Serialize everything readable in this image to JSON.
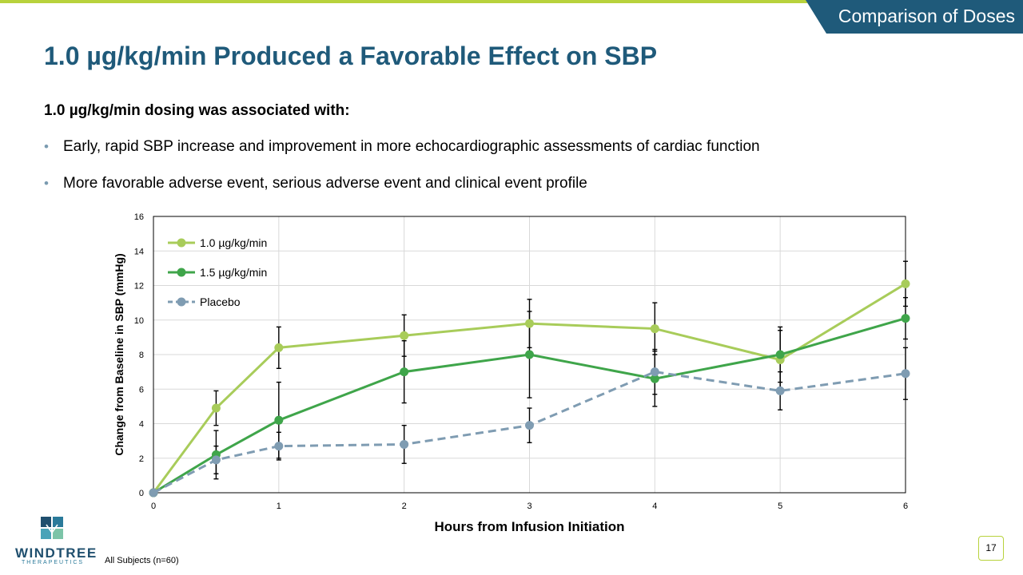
{
  "header": {
    "section_label": "Comparison of Doses"
  },
  "slide": {
    "title": "1.0 µg/kg/min Produced a Favorable Effect on SBP",
    "intro": "1.0 µg/kg/min dosing was associated with:",
    "bullets": [
      "Early, rapid SBP increase and improvement  in more echocardiographic assessments of cardiac function",
      "More favorable adverse event, serious adverse event and clinical event profile"
    ],
    "footnote": "All Subjects (n=60)",
    "page_number": "17"
  },
  "logo": {
    "word": "WINDTREE",
    "sub": "THERAPEUTICS"
  },
  "colors": {
    "title": "#1f5a7a",
    "accent_bar": "#b8d23c",
    "tab": "#1f5a7a"
  },
  "chart_data": {
    "type": "line",
    "xlabel": "Hours from Infusion Initiation",
    "ylabel": "Change from Baseline in SBP (mmHg)",
    "xlim": [
      0,
      6
    ],
    "ylim": [
      0,
      16
    ],
    "xticks": [
      0,
      1,
      2,
      3,
      4,
      5,
      6
    ],
    "yticks": [
      0,
      2,
      4,
      6,
      8,
      10,
      12,
      14,
      16
    ],
    "grid": true,
    "legend": "top-left",
    "x": [
      0,
      0.5,
      1,
      2,
      3,
      4,
      5,
      6
    ],
    "series": [
      {
        "name": "1.0 µg/kg/min",
        "color": "#a8cc5a",
        "dash": false,
        "values": [
          0,
          4.9,
          8.4,
          9.1,
          9.8,
          9.5,
          7.7,
          12.1
        ],
        "errors": [
          0,
          1.0,
          1.2,
          1.2,
          1.4,
          1.5,
          1.7,
          1.3
        ]
      },
      {
        "name": "1.5 µg/kg/min",
        "color": "#3fa54a",
        "dash": false,
        "values": [
          0,
          2.2,
          4.2,
          7.0,
          8.0,
          6.6,
          8.0,
          10.1
        ],
        "errors": [
          0,
          1.4,
          2.2,
          1.8,
          2.5,
          1.6,
          1.6,
          1.2
        ]
      },
      {
        "name": "Placebo",
        "color": "#7f9cb2",
        "dash": true,
        "values": [
          0,
          1.9,
          2.7,
          2.8,
          3.9,
          7.0,
          5.9,
          6.9
        ],
        "errors": [
          0,
          0.8,
          0.8,
          1.1,
          1.0,
          1.3,
          1.1,
          1.5
        ]
      }
    ]
  }
}
